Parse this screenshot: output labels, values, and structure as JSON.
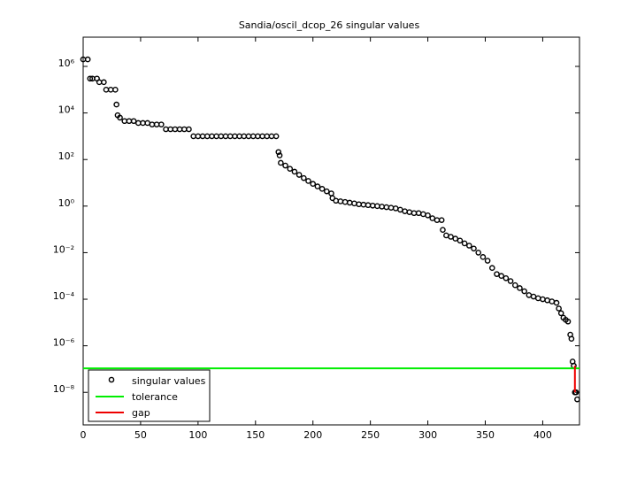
{
  "chart_data": {
    "type": "scatter",
    "title": "Sandia/oscil_dcop_26 singular values",
    "x": [
      0,
      4,
      6,
      8,
      12,
      14,
      18,
      20,
      24,
      28,
      29,
      30,
      32,
      36,
      40,
      44,
      48,
      52,
      56,
      60,
      64,
      68,
      72,
      76,
      80,
      84,
      88,
      92,
      96,
      100,
      104,
      108,
      112,
      116,
      120,
      124,
      128,
      132,
      136,
      140,
      144,
      148,
      152,
      156,
      160,
      164,
      168,
      170,
      171,
      172,
      176,
      180,
      184,
      188,
      192,
      196,
      200,
      204,
      208,
      212,
      216,
      217,
      220,
      224,
      228,
      232,
      236,
      240,
      244,
      248,
      252,
      256,
      260,
      264,
      268,
      272,
      276,
      280,
      284,
      288,
      292,
      296,
      300,
      304,
      308,
      312,
      313,
      316,
      320,
      324,
      328,
      332,
      336,
      340,
      344,
      348,
      352,
      356,
      360,
      364,
      368,
      372,
      376,
      380,
      384,
      388,
      392,
      396,
      400,
      404,
      408,
      412,
      414,
      416,
      418,
      420,
      422,
      424,
      425,
      426,
      427,
      428,
      429,
      430
    ],
    "series": [
      {
        "name": "singular values",
        "color": "#000000",
        "values": [
          2000000.0,
          2000000.0,
          300000.0,
          300000.0,
          300000.0,
          210000.0,
          210000.0,
          100000.0,
          100000.0,
          100000.0,
          23000.0,
          8000.0,
          6300.0,
          4500.0,
          4500.0,
          4500.0,
          3700.0,
          3700.0,
          3700.0,
          3200.0,
          3200.0,
          3200.0,
          2000.0,
          2000.0,
          2000.0,
          2000.0,
          2000.0,
          2000.0,
          1000.0,
          1000.0,
          1000.0,
          1000.0,
          1000.0,
          1000.0,
          1000.0,
          1000.0,
          1000.0,
          1000.0,
          1000.0,
          1000.0,
          1000.0,
          1000.0,
          1000.0,
          1000.0,
          1000.0,
          1000.0,
          1000.0,
          210,
          150,
          72,
          55,
          40,
          30,
          22,
          16,
          12,
          9,
          7,
          5.5,
          4.3,
          3.5,
          2.2,
          1.7,
          1.6,
          1.5,
          1.4,
          1.3,
          1.2,
          1.15,
          1.1,
          1.05,
          1.0,
          0.95,
          0.9,
          0.85,
          0.8,
          0.7,
          0.6,
          0.55,
          0.5,
          0.5,
          0.45,
          0.4,
          0.3,
          0.25,
          0.25,
          0.095,
          0.055,
          0.048,
          0.04,
          0.033,
          0.025,
          0.02,
          0.015,
          0.01,
          0.0065,
          0.0045,
          0.0022,
          0.0012,
          0.001,
          0.0008,
          0.0006,
          0.0004,
          0.0003,
          0.00022,
          0.00015,
          0.00013,
          0.00011,
          0.0001,
          9e-05,
          8e-05,
          7e-05,
          4e-05,
          2.5e-05,
          1.6e-05,
          1.3e-05,
          1.1e-05,
          3e-06,
          2e-06,
          2.1e-07,
          1.4e-07,
          1e-08,
          1e-08,
          5e-09
        ]
      }
    ],
    "tolerance": {
      "name": "tolerance",
      "color": "#00ee00",
      "value": 1.07e-07
    },
    "gap": {
      "name": "gap",
      "color": "#ee0000",
      "x": [
        428,
        428
      ],
      "values": [
        1.4e-07,
        1e-08
      ]
    },
    "xlim": [
      0,
      432
    ],
    "xticks": [
      0,
      50,
      100,
      150,
      200,
      250,
      300,
      350,
      400
    ],
    "ylim": [
      4e-10,
      18000000.0
    ],
    "log_y": true,
    "yticks": [
      {
        "value": 1e-08,
        "label": "10⁻⁸"
      },
      {
        "value": 1e-06,
        "label": "10⁻⁶"
      },
      {
        "value": 0.0001,
        "label": "10⁻⁴"
      },
      {
        "value": 0.01,
        "label": "10⁻²"
      },
      {
        "value": 1,
        "label": "10⁰"
      },
      {
        "value": 100,
        "label": "10²"
      },
      {
        "value": 10000,
        "label": "10⁴"
      },
      {
        "value": 1000000,
        "label": "10⁶"
      }
    ],
    "legend": "lower left"
  }
}
